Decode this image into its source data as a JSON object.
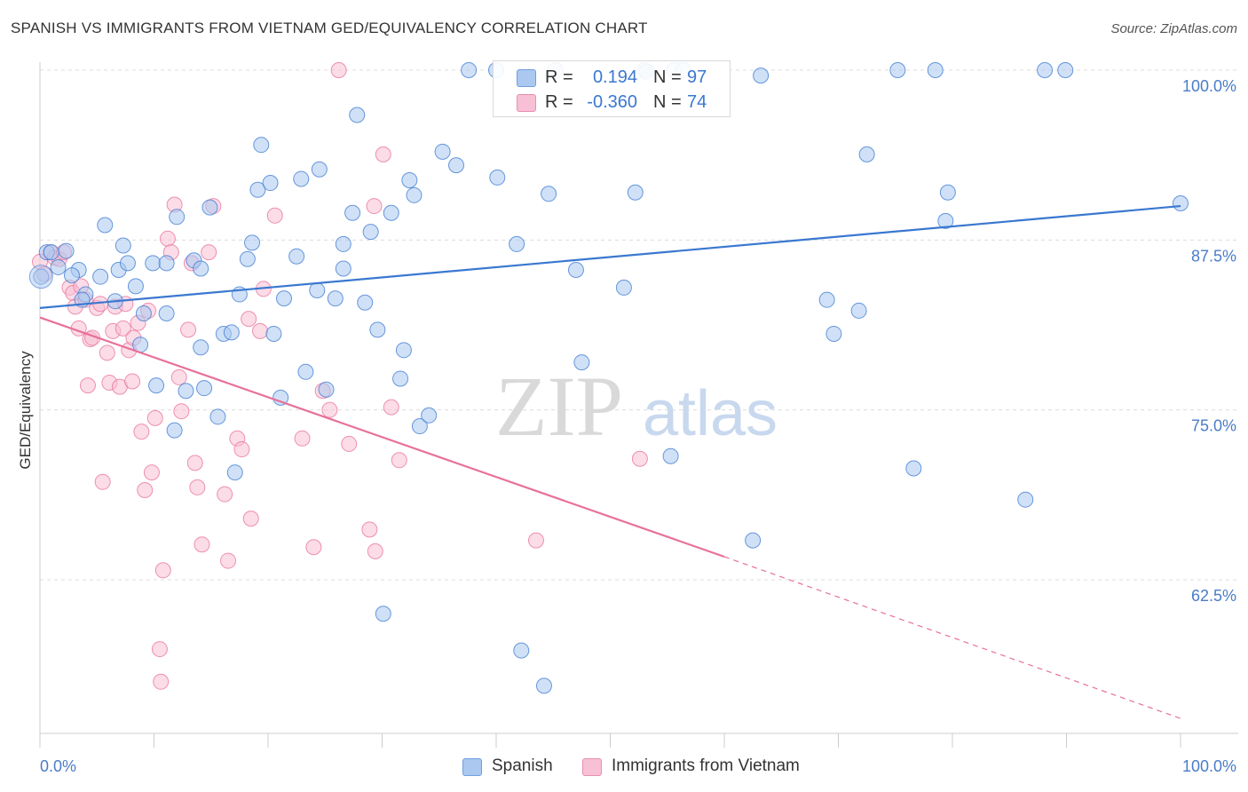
{
  "title": "SPANISH VS IMMIGRANTS FROM VIETNAM GED/EQUIVALENCY CORRELATION CHART",
  "source": "Source: ZipAtlas.com",
  "watermark": {
    "zip": "ZIP",
    "atlas": "atlas"
  },
  "legend": {
    "rows": [
      {
        "r_label": "R =",
        "r_value": "0.194",
        "n_label": "N =",
        "n_value": "97",
        "color": "#aac8f0"
      },
      {
        "r_label": "R =",
        "r_value": "-0.360",
        "n_label": "N =",
        "n_value": "74",
        "color": "#f8c0d4"
      }
    ]
  },
  "chart_data": {
    "type": "scatter",
    "title": "SPANISH VS IMMIGRANTS FROM VIETNAM GED/EQUIVALENCY CORRELATION CHART",
    "xlabel": "",
    "ylabel": "GED/Equivalency",
    "x_tick_labels": [
      "0.0%",
      "100.0%"
    ],
    "y_tick_labels": [
      "100.0%",
      "87.5%",
      "75.0%",
      "62.5%"
    ],
    "y_ticks": [
      100,
      87.5,
      75,
      62.5
    ],
    "xlim": [
      0,
      100
    ],
    "ylim": [
      52,
      101
    ],
    "grid": true,
    "legend_position": "bottom",
    "colors": {
      "Spanish": "#3a78d0",
      "Immigrants from Vietnam": "#e8709a",
      "axis_text": "#4a7cc8"
    },
    "series": [
      {
        "name": "Spanish",
        "color": "#3a78d0",
        "fill": "#aac8f0",
        "trend": {
          "x": [
            0,
            100
          ],
          "y": [
            82.5,
            90.0
          ],
          "dashed_extension": false
        },
        "points": [
          [
            0.1,
            84.8
          ],
          [
            0.6,
            86.6
          ],
          [
            1.0,
            86.6
          ],
          [
            2.3,
            86.7
          ],
          [
            1.6,
            85.5
          ],
          [
            3.4,
            85.3
          ],
          [
            2.8,
            84.9
          ],
          [
            5.3,
            84.8
          ],
          [
            4.0,
            83.5
          ],
          [
            3.7,
            83.1
          ],
          [
            5.7,
            88.6
          ],
          [
            7.3,
            87.1
          ],
          [
            6.6,
            83.0
          ],
          [
            6.9,
            85.3
          ],
          [
            7.7,
            85.8
          ],
          [
            8.4,
            84.1
          ],
          [
            9.1,
            82.1
          ],
          [
            8.8,
            79.8
          ],
          [
            9.9,
            85.8
          ],
          [
            11.1,
            85.8
          ],
          [
            11.1,
            82.1
          ],
          [
            12.0,
            89.2
          ],
          [
            13.5,
            86.0
          ],
          [
            14.1,
            85.4
          ],
          [
            14.1,
            79.6
          ],
          [
            14.4,
            76.6
          ],
          [
            14.9,
            89.9
          ],
          [
            10.2,
            76.8
          ],
          [
            11.8,
            73.5
          ],
          [
            12.8,
            76.4
          ],
          [
            15.6,
            74.5
          ],
          [
            16.1,
            80.6
          ],
          [
            16.8,
            80.7
          ],
          [
            17.1,
            70.4
          ],
          [
            17.5,
            83.5
          ],
          [
            18.2,
            86.1
          ],
          [
            18.6,
            87.3
          ],
          [
            19.4,
            94.5
          ],
          [
            19.1,
            91.2
          ],
          [
            20.2,
            91.7
          ],
          [
            20.5,
            80.6
          ],
          [
            21.1,
            75.9
          ],
          [
            21.4,
            83.2
          ],
          [
            22.5,
            86.3
          ],
          [
            22.9,
            92.0
          ],
          [
            23.3,
            77.8
          ],
          [
            24.3,
            83.8
          ],
          [
            24.5,
            92.7
          ],
          [
            25.1,
            76.5
          ],
          [
            25.9,
            83.2
          ],
          [
            26.6,
            87.2
          ],
          [
            26.6,
            85.4
          ],
          [
            27.4,
            89.5
          ],
          [
            27.8,
            96.7
          ],
          [
            28.5,
            82.9
          ],
          [
            29.0,
            88.1
          ],
          [
            29.6,
            80.9
          ],
          [
            30.1,
            60.0
          ],
          [
            30.8,
            89.5
          ],
          [
            31.6,
            77.3
          ],
          [
            31.9,
            79.4
          ],
          [
            32.4,
            91.9
          ],
          [
            32.8,
            90.8
          ],
          [
            33.3,
            73.8
          ],
          [
            34.1,
            74.6
          ],
          [
            35.3,
            94.0
          ],
          [
            36.5,
            93.0
          ],
          [
            37.6,
            100.0
          ],
          [
            40.0,
            100.0
          ],
          [
            40.1,
            92.1
          ],
          [
            41.8,
            87.2
          ],
          [
            42.2,
            57.3
          ],
          [
            44.2,
            54.7
          ],
          [
            44.6,
            90.9
          ],
          [
            45.2,
            100.0
          ],
          [
            47.0,
            85.3
          ],
          [
            47.5,
            78.5
          ],
          [
            51.2,
            84.0
          ],
          [
            52.2,
            91.0
          ],
          [
            53.0,
            100.0
          ],
          [
            53.2,
            99.9
          ],
          [
            55.3,
            71.6
          ],
          [
            55.6,
            100.0
          ],
          [
            56.4,
            100.0
          ],
          [
            62.5,
            65.4
          ],
          [
            63.2,
            99.6
          ],
          [
            69.0,
            83.1
          ],
          [
            69.6,
            80.6
          ],
          [
            71.8,
            82.3
          ],
          [
            72.5,
            93.8
          ],
          [
            75.2,
            100.0
          ],
          [
            76.6,
            70.7
          ],
          [
            78.5,
            100.0
          ],
          [
            79.4,
            88.9
          ],
          [
            79.6,
            91.0
          ],
          [
            86.4,
            68.4
          ],
          [
            88.1,
            100.0
          ],
          [
            89.9,
            100.0
          ],
          [
            100.0,
            90.2
          ]
        ]
      },
      {
        "name": "Immigrants from Vietnam",
        "color": "#e8709a",
        "fill": "#f8c0d4",
        "trend": {
          "x": [
            0,
            60
          ],
          "y": [
            81.8,
            64.2
          ],
          "dashed_extension": true,
          "dashed_to": {
            "x": 100,
            "y": 52.3
          }
        },
        "points": [
          [
            0.0,
            85.9
          ],
          [
            0.4,
            85.0
          ],
          [
            0.9,
            86.6
          ],
          [
            1.3,
            86.2
          ],
          [
            1.7,
            86.1
          ],
          [
            2.1,
            86.6
          ],
          [
            2.6,
            84.0
          ],
          [
            2.9,
            83.6
          ],
          [
            3.1,
            82.6
          ],
          [
            3.4,
            81.0
          ],
          [
            3.6,
            84.1
          ],
          [
            4.0,
            83.1
          ],
          [
            4.2,
            76.8
          ],
          [
            4.4,
            80.2
          ],
          [
            4.6,
            80.3
          ],
          [
            5.0,
            82.5
          ],
          [
            5.3,
            82.8
          ],
          [
            5.5,
            69.7
          ],
          [
            5.9,
            79.2
          ],
          [
            6.1,
            77.0
          ],
          [
            6.4,
            80.8
          ],
          [
            6.6,
            82.6
          ],
          [
            7.0,
            76.7
          ],
          [
            7.3,
            81.0
          ],
          [
            7.5,
            82.8
          ],
          [
            7.8,
            79.4
          ],
          [
            8.1,
            77.1
          ],
          [
            8.2,
            80.3
          ],
          [
            8.6,
            81.4
          ],
          [
            8.9,
            73.4
          ],
          [
            9.2,
            69.1
          ],
          [
            9.5,
            82.3
          ],
          [
            9.8,
            70.4
          ],
          [
            10.1,
            74.4
          ],
          [
            10.5,
            57.4
          ],
          [
            10.6,
            55.0
          ],
          [
            10.8,
            63.2
          ],
          [
            11.2,
            87.6
          ],
          [
            11.5,
            86.6
          ],
          [
            11.8,
            90.1
          ],
          [
            12.2,
            77.4
          ],
          [
            12.4,
            74.9
          ],
          [
            13.0,
            80.9
          ],
          [
            13.3,
            85.8
          ],
          [
            13.6,
            71.1
          ],
          [
            13.8,
            69.3
          ],
          [
            14.2,
            65.1
          ],
          [
            14.8,
            86.6
          ],
          [
            15.2,
            90.0
          ],
          [
            16.2,
            68.8
          ],
          [
            16.5,
            63.9
          ],
          [
            17.3,
            72.9
          ],
          [
            17.7,
            72.1
          ],
          [
            18.3,
            81.7
          ],
          [
            18.5,
            67.0
          ],
          [
            19.3,
            80.8
          ],
          [
            19.6,
            83.9
          ],
          [
            20.6,
            89.3
          ],
          [
            23.0,
            72.9
          ],
          [
            24.0,
            64.9
          ],
          [
            24.8,
            76.4
          ],
          [
            25.4,
            75.0
          ],
          [
            26.2,
            100.0
          ],
          [
            27.1,
            72.5
          ],
          [
            28.9,
            66.2
          ],
          [
            29.3,
            90.0
          ],
          [
            29.4,
            64.6
          ],
          [
            30.1,
            93.8
          ],
          [
            30.8,
            75.2
          ],
          [
            31.5,
            71.3
          ],
          [
            43.5,
            65.4
          ],
          [
            52.6,
            71.4
          ]
        ]
      }
    ]
  },
  "bottom_legend": [
    {
      "label": "Spanish",
      "color": "#aac8f0",
      "border": "#6f9fe0"
    },
    {
      "label": "Immigrants from Vietnam",
      "color": "#f8c0d4",
      "border": "#e88fb0"
    }
  ]
}
